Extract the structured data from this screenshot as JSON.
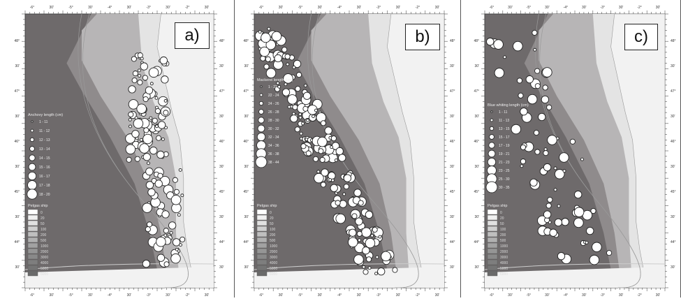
{
  "panels": [
    {
      "id": "a",
      "label": "a)",
      "legend_title": "Anchovy length (cm)",
      "classes": [
        "1 - 11",
        "11 - 12",
        "12 - 13",
        "13 - 14",
        "14 - 15",
        "15 - 16",
        "16 - 17",
        "17 - 18",
        "18 - 20"
      ],
      "depth_title": "Pelgas ship",
      "depths": [
        "0",
        "20",
        "50",
        "100",
        "200",
        "500",
        "1000",
        "2000",
        "3000",
        "4000",
        "5000",
        "6000"
      ]
    },
    {
      "id": "b",
      "label": "b)",
      "legend_title": "Mackerel length (cm)",
      "classes": [
        "1 - 22",
        "22 - 24",
        "24 - 26",
        "26 - 28",
        "28 - 30",
        "30 - 32",
        "32 - 34",
        "34 - 36",
        "36 - 38",
        "38 - 44"
      ],
      "depth_title": "Pelgas ship",
      "depths": [
        "0",
        "20",
        "50",
        "100",
        "200",
        "500",
        "1000",
        "2000",
        "3000",
        "4000",
        "5000",
        "6000"
      ]
    },
    {
      "id": "c",
      "label": "c)",
      "legend_title": "Blue whiting length (cm)",
      "classes": [
        "1 - 11",
        "11 - 13",
        "13 - 15",
        "15 - 17",
        "17 - 19",
        "19 - 21",
        "21 - 23",
        "23 - 25",
        "25 - 30",
        "30 - 35"
      ],
      "depth_title": "Pelgas ship",
      "depths": [
        "0",
        "20",
        "50",
        "100",
        "200",
        "500",
        "1000",
        "2000",
        "3000",
        "4000",
        "5000",
        "6000"
      ]
    }
  ],
  "axes": {
    "lat_labels": [
      "48°",
      "30'",
      "47°",
      "30'",
      "46°",
      "30'",
      "45°",
      "30'",
      "44°",
      "30'"
    ],
    "lon_labels": [
      "-6°",
      "30'",
      "-5°",
      "30'",
      "-4°",
      "30'",
      "-3°",
      "30'",
      "-2°",
      "30'"
    ]
  },
  "colors": {
    "deep": "#6e6a6b",
    "mid": "#8f8b8c",
    "shelf": "#b7b5b6",
    "coast": "#e4e4e4",
    "land": "#f2f2f2"
  }
}
